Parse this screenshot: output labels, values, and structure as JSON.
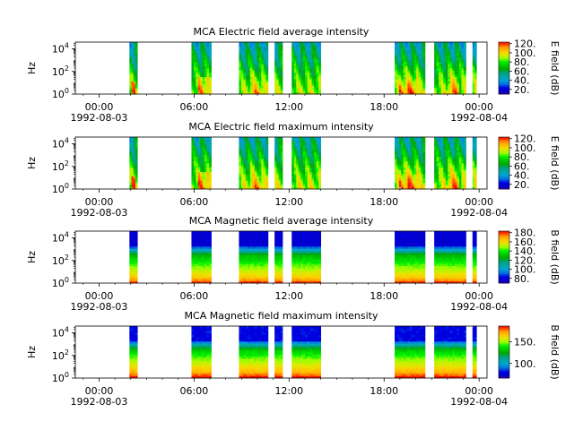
{
  "chart_data": [
    {
      "type": "heatmap",
      "title": "MCA  Electric field average intensity",
      "ylabel": "Hz",
      "y_scale": "log",
      "y_ticks": [
        {
          "main": "10",
          "exp": "0"
        },
        {
          "main": "10",
          "exp": "2"
        },
        {
          "main": "10",
          "exp": "4"
        }
      ],
      "x_ticks": [
        "00:00",
        "06:00",
        "12:00",
        "18:00",
        "00:00"
      ],
      "date_labels": [
        "1992-08-03",
        "1992-08-04"
      ],
      "colorbar_label": "E field (dB)",
      "colorbar_ticks": [
        "20.",
        "40.",
        "60.",
        "80.",
        "100.",
        "120."
      ],
      "colormap": "nipy_spectral",
      "segments": [
        [
          "01:55",
          "02:25"
        ],
        [
          "05:50",
          "07:05"
        ],
        [
          "08:50",
          "10:40"
        ],
        [
          "11:05",
          "11:35"
        ],
        [
          "12:10",
          "14:00"
        ],
        [
          "18:40",
          "20:35"
        ],
        [
          "21:10",
          "23:10"
        ],
        [
          "23:35",
          "23:50"
        ]
      ]
    },
    {
      "type": "heatmap",
      "title": "MCA  Electric field maximum intensity",
      "ylabel": "Hz",
      "y_scale": "log",
      "y_ticks": [
        {
          "main": "10",
          "exp": "0"
        },
        {
          "main": "10",
          "exp": "2"
        },
        {
          "main": "10",
          "exp": "4"
        }
      ],
      "x_ticks": [
        "00:00",
        "06:00",
        "12:00",
        "18:00",
        "00:00"
      ],
      "date_labels": [
        "1992-08-03",
        "1992-08-04"
      ],
      "colorbar_label": "E field (dB)",
      "colorbar_ticks": [
        "20.",
        "40.",
        "60.",
        "80.",
        "100.",
        "120."
      ],
      "colormap": "nipy_spectral",
      "segments": [
        [
          "01:55",
          "02:25"
        ],
        [
          "05:50",
          "07:05"
        ],
        [
          "08:50",
          "10:40"
        ],
        [
          "11:05",
          "11:35"
        ],
        [
          "12:10",
          "14:00"
        ],
        [
          "18:40",
          "20:35"
        ],
        [
          "21:10",
          "23:10"
        ],
        [
          "23:35",
          "23:50"
        ]
      ]
    },
    {
      "type": "heatmap",
      "title": "MCA  Magnetic field average intensity",
      "ylabel": "Hz",
      "y_scale": "log",
      "y_ticks": [
        {
          "main": "10",
          "exp": "0"
        },
        {
          "main": "10",
          "exp": "2"
        },
        {
          "main": "10",
          "exp": "4"
        }
      ],
      "x_ticks": [
        "00:00",
        "06:00",
        "12:00",
        "18:00",
        "00:00"
      ],
      "date_labels": [
        "1992-08-03",
        "1992-08-04"
      ],
      "colorbar_label": "B field (dB)",
      "colorbar_ticks": [
        "80.",
        "100.",
        "120.",
        "140.",
        "160.",
        "180."
      ],
      "colormap": "nipy_spectral",
      "segments": [
        [
          "01:55",
          "02:25"
        ],
        [
          "05:50",
          "07:05"
        ],
        [
          "08:50",
          "10:40"
        ],
        [
          "11:05",
          "11:35"
        ],
        [
          "12:10",
          "14:00"
        ],
        [
          "18:40",
          "20:35"
        ],
        [
          "21:10",
          "23:10"
        ],
        [
          "23:35",
          "23:50"
        ]
      ]
    },
    {
      "type": "heatmap",
      "title": "MCA  Magnetic field maximum intensity",
      "ylabel": "Hz",
      "y_scale": "log",
      "y_ticks": [
        {
          "main": "10",
          "exp": "0"
        },
        {
          "main": "10",
          "exp": "2"
        },
        {
          "main": "10",
          "exp": "4"
        }
      ],
      "x_ticks": [
        "00:00",
        "06:00",
        "12:00",
        "18:00",
        "00:00"
      ],
      "date_labels": [
        "1992-08-03",
        "1992-08-04"
      ],
      "colorbar_label": "B field (dB)",
      "colorbar_ticks": [
        "100.",
        "150."
      ],
      "colormap": "nipy_spectral",
      "segments": [
        [
          "01:55",
          "02:25"
        ],
        [
          "05:50",
          "07:05"
        ],
        [
          "08:50",
          "10:40"
        ],
        [
          "11:05",
          "11:35"
        ],
        [
          "12:10",
          "14:00"
        ],
        [
          "18:40",
          "20:35"
        ],
        [
          "21:10",
          "23:10"
        ],
        [
          "23:35",
          "23:50"
        ]
      ]
    }
  ]
}
